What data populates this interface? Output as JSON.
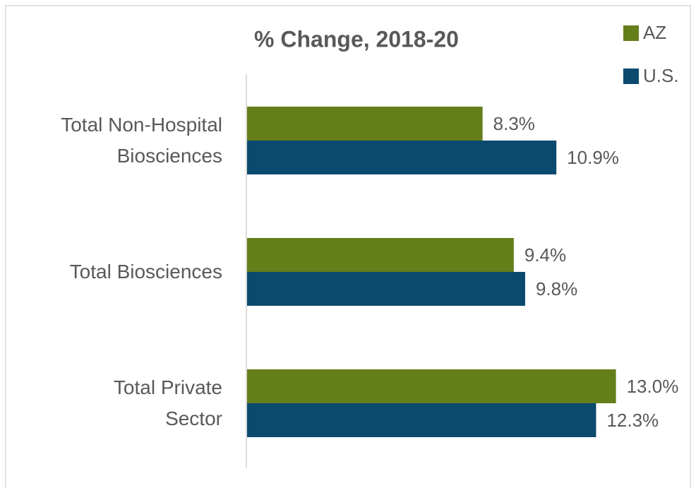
{
  "chart_data": {
    "type": "hbar",
    "title": "% Change, 2018-20",
    "categories": [
      "Total Non-Hospital\nBiosciences",
      "Total Biosciences",
      "Total Private\nSector"
    ],
    "series": [
      {
        "name": "AZ",
        "color": "#647f1a",
        "values": [
          8.3,
          9.4,
          13.0
        ],
        "value_labels": [
          "8.3%",
          "9.4%",
          "13.0%"
        ]
      },
      {
        "name": "U.S.",
        "color": "#0b4a6e",
        "values": [
          10.9,
          9.8,
          12.3
        ],
        "value_labels": [
          "10.9%",
          "9.8%",
          "12.3%"
        ]
      }
    ],
    "xlim": [
      0,
      15
    ],
    "legend": "top-right"
  }
}
